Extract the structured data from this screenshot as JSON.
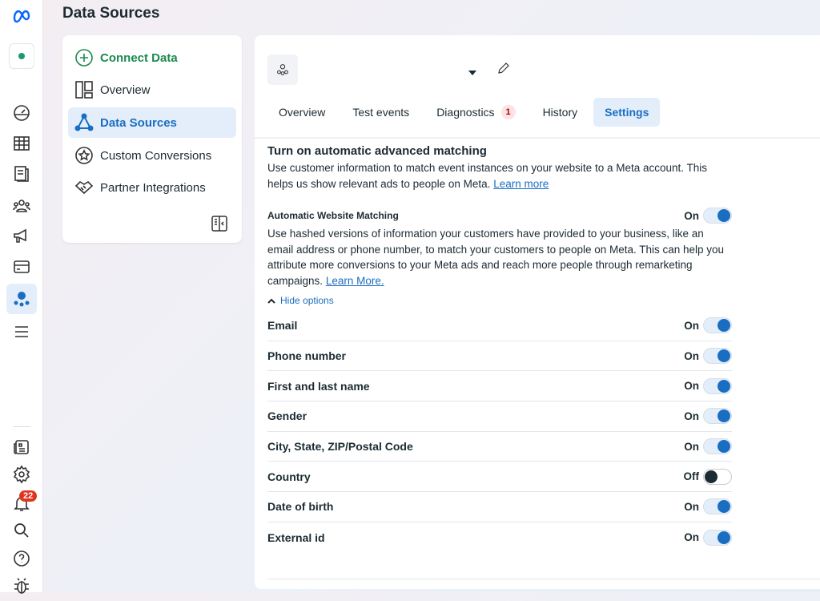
{
  "page_title": "Data Sources",
  "rail": {
    "icons": [
      "meta-logo",
      "business-logo",
      "dashboard-icon",
      "table-icon",
      "pages-icon",
      "audience-icon",
      "ads-manager-icon",
      "billing-icon",
      "events-manager-icon",
      "menu-icon",
      "news-icon",
      "settings-icon",
      "notifications-icon",
      "search-icon",
      "help-icon",
      "bug-icon"
    ],
    "notification_count": "22"
  },
  "nav": {
    "items": [
      {
        "label": "Connect Data"
      },
      {
        "label": "Overview"
      },
      {
        "label": "Data Sources"
      },
      {
        "label": "Custom Conversions"
      },
      {
        "label": "Partner Integrations"
      }
    ]
  },
  "tabs": [
    {
      "label": "Overview"
    },
    {
      "label": "Test events"
    },
    {
      "label": "Diagnostics",
      "badge": "1"
    },
    {
      "label": "History"
    },
    {
      "label": "Settings"
    }
  ],
  "settings": {
    "title": "Turn on automatic advanced matching",
    "desc": "Use customer information to match event instances on your website to a Meta account. This helps us show relevant ads to people on Meta.",
    "learn_more": "Learn more",
    "awm_title": "Automatic Website Matching",
    "awm_state": "On",
    "awm_desc": "Use hashed versions of information your customers have provided to your business, like an email address or phone number, to match your customers to people on Meta. This can help you attribute more conversions to your Meta ads and reach more people through remarketing campaigns.",
    "awm_learn_more": "Learn More.",
    "hide_options": "Hide options",
    "options": [
      {
        "label": "Email",
        "state": "On"
      },
      {
        "label": "Phone number",
        "state": "On"
      },
      {
        "label": "First and last name",
        "state": "On"
      },
      {
        "label": "Gender",
        "state": "On"
      },
      {
        "label": "City, State, ZIP/Postal Code",
        "state": "On"
      },
      {
        "label": "Country",
        "state": "Off"
      },
      {
        "label": "Date of birth",
        "state": "On"
      },
      {
        "label": "External id",
        "state": "On"
      }
    ]
  },
  "colors": {
    "accent": "#1a6ec2",
    "green": "#1a8a4f",
    "badge": "#e0341e"
  }
}
